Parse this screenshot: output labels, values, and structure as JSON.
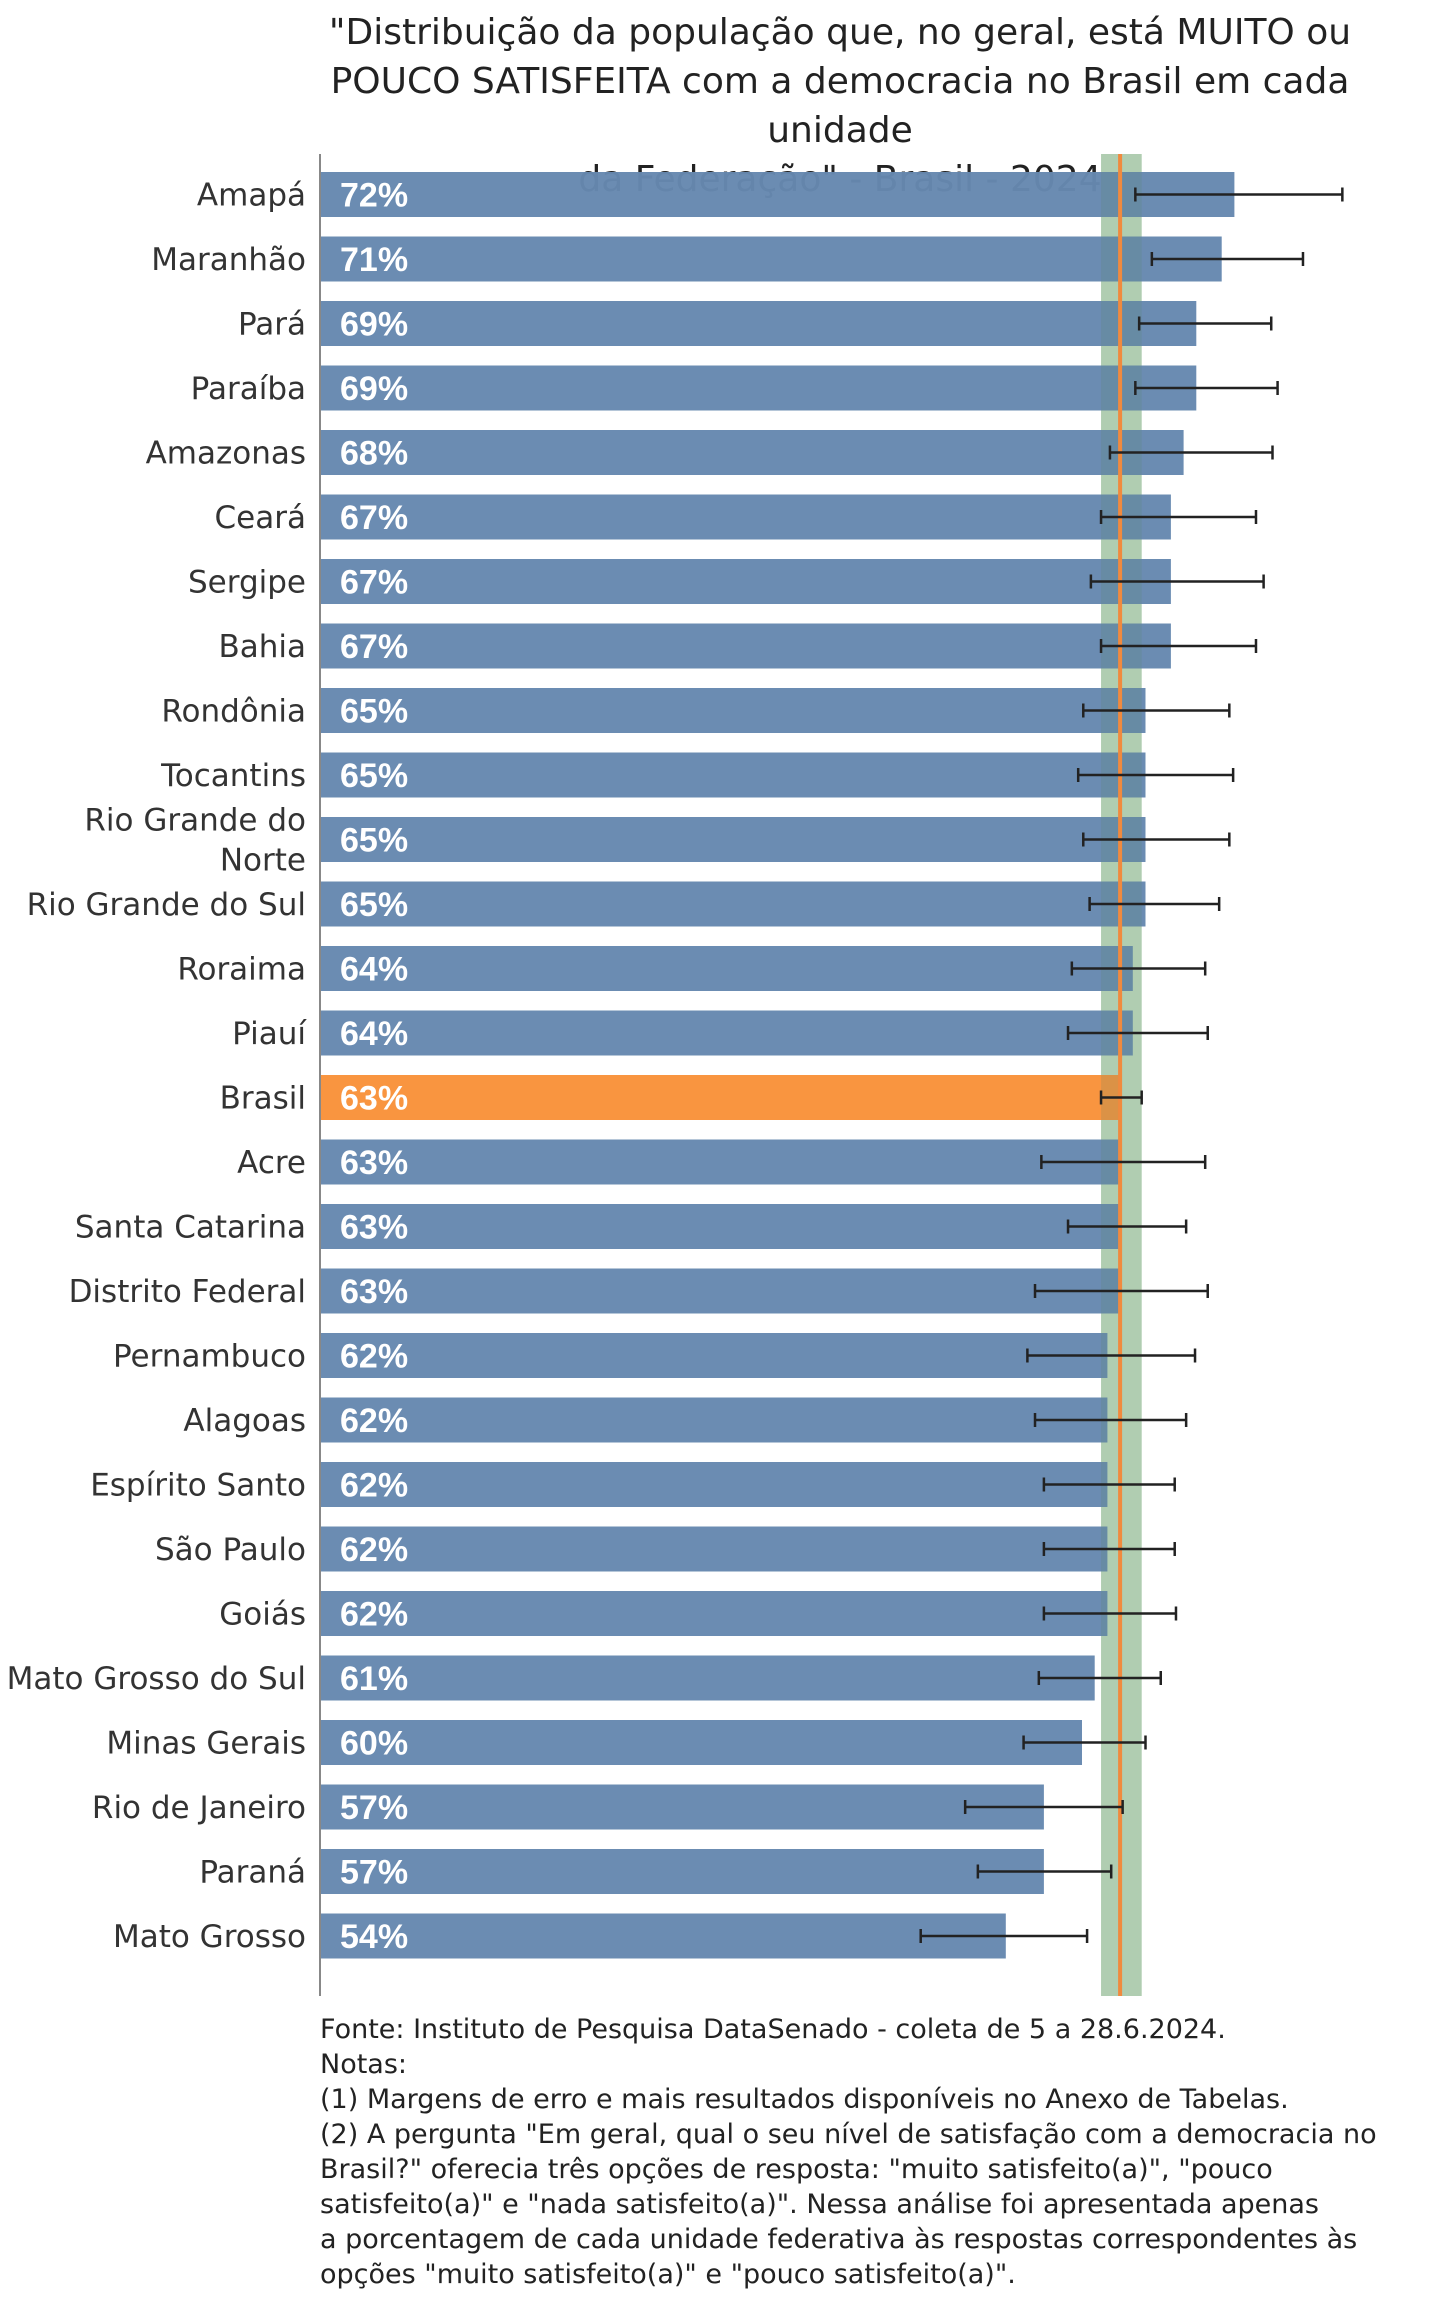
{
  "chart_data": {
    "type": "bar",
    "orientation": "horizontal",
    "title_lines": [
      "\"Distribuição da população que, no geral, está MUITO ou",
      "POUCO SATISFEITA com a democracia no Brasil em cada unidade",
      "da Federação\" - Brasil - 2024"
    ],
    "categories": [
      "Amapá",
      "Maranhão",
      "Pará",
      "Paraíba",
      "Amazonas",
      "Ceará",
      "Sergipe",
      "Bahia",
      "Rondônia",
      "Tocantins",
      "Rio Grande do Norte",
      "Rio Grande do Sul",
      "Roraima",
      "Piauí",
      "Brasil",
      "Acre",
      "Santa Catarina",
      "Distrito Federal",
      "Pernambuco",
      "Alagoas",
      "Espírito Santo",
      "São Paulo",
      "Goiás",
      "Mato Grosso do Sul",
      "Minas Gerais",
      "Rio de Janeiro",
      "Paraná",
      "Mato Grosso"
    ],
    "values": [
      72,
      71,
      69,
      69,
      68,
      67,
      67,
      67,
      65,
      65,
      65,
      65,
      64,
      64,
      63,
      63,
      63,
      63,
      62,
      62,
      62,
      62,
      62,
      61,
      60,
      57,
      57,
      54
    ],
    "value_labels": [
      "72%",
      "71%",
      "69%",
      "69%",
      "68%",
      "67%",
      "67%",
      "67%",
      "65%",
      "65%",
      "65%",
      "65%",
      "64%",
      "64%",
      "63%",
      "63%",
      "63%",
      "63%",
      "62%",
      "62%",
      "62%",
      "62%",
      "62%",
      "61%",
      "60%",
      "57%",
      "57%",
      "54%"
    ],
    "error_low": [
      64.2,
      65.5,
      64.5,
      64.2,
      62.2,
      61.5,
      60.7,
      61.5,
      60.1,
      59.7,
      60.1,
      60.6,
      59.2,
      58.9,
      61.5,
      56.8,
      58.9,
      56.3,
      55.7,
      56.3,
      57.0,
      57.0,
      57.0,
      56.6,
      55.4,
      50.8,
      51.8,
      47.3
    ],
    "error_high": [
      80.5,
      77.4,
      74.9,
      75.4,
      75.0,
      73.7,
      74.3,
      73.7,
      71.6,
      71.9,
      71.6,
      70.8,
      69.7,
      69.9,
      64.7,
      69.7,
      68.2,
      69.9,
      68.9,
      68.2,
      67.3,
      67.3,
      67.4,
      66.2,
      65.0,
      63.2,
      62.3,
      60.4
    ],
    "highlight_category": "Brasil",
    "reference_line": 63,
    "reference_band": [
      61.5,
      64.7
    ],
    "xlim": [
      0,
      90
    ],
    "colors": {
      "bar": "#6688b0",
      "highlight": "#f9923a",
      "reference_line": "#f08a3e",
      "reference_band": "#c3dcc0",
      "errorbar": "#222222",
      "axis": "#888888"
    },
    "grid": false,
    "legend": "none"
  },
  "footnote_lines": [
    "Fonte: Instituto de Pesquisa DataSenado - coleta de 5 a 28.6.2024.",
    "Notas:",
    "(1) Margens de erro e mais resultados disponíveis no Anexo de Tabelas.",
    "(2) A pergunta \"Em geral, qual o seu nível de satisfação com a democracia no",
    "Brasil?\" oferecia três opções de resposta: \"muito satisfeito(a)\", \"pouco",
    "satisfeito(a)\" e \"nada satisfeito(a)\". Nessa análise foi apresentada apenas",
    "a porcentagem de cada unidade federativa às respostas correspondentes às",
    "opções \"muito satisfeito(a)\" e \"pouco satisfeito(a)\"."
  ]
}
